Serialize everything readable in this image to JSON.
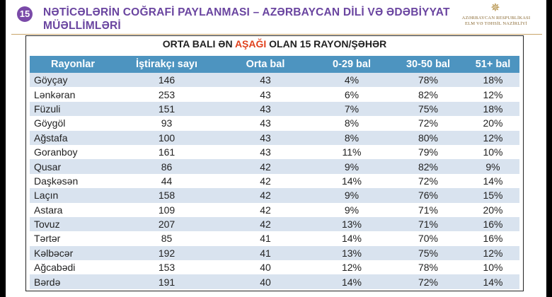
{
  "slide_number": "15",
  "title": "NƏTİCƏLƏRİN COĞRAFİ PAYLANMASI – AZƏRBAYCAN DİLİ VƏ ƏDƏBİYYAT MÜƏLLİMLƏRİ",
  "ministry": {
    "line1": "AZƏRBAYCAN RESPUBLİKASI",
    "line2": "ELM VƏ TƏHSİL NAZİRLİYİ"
  },
  "subtitle": {
    "before": "ORTA BALI ƏN ",
    "highlight": "AŞAĞI",
    "after": " OLAN 15 RAYON/ŞƏHƏR"
  },
  "colors": {
    "header_bg": "#4d94c0",
    "row_alt_bg": "#d9e3ef",
    "title_color": "#6a45a0",
    "highlight_color": "#e0421e"
  },
  "table": {
    "headers": [
      "Rayonlar",
      "İştirakçı sayı",
      "Orta bal",
      "0-29 bal",
      "30-50 bal",
      "51+ bal"
    ],
    "rows": [
      [
        "Göyçay",
        "146",
        "43",
        "4%",
        "78%",
        "18%"
      ],
      [
        "Lənkəran",
        "253",
        "43",
        "6%",
        "82%",
        "12%"
      ],
      [
        "Füzuli",
        "151",
        "43",
        "7%",
        "75%",
        "18%"
      ],
      [
        "Göygöl",
        "93",
        "43",
        "8%",
        "72%",
        "20%"
      ],
      [
        "Ağstafa",
        "100",
        "43",
        "8%",
        "80%",
        "12%"
      ],
      [
        "Goranboy",
        "161",
        "43",
        "11%",
        "79%",
        "10%"
      ],
      [
        "Qusar",
        "86",
        "42",
        "9%",
        "82%",
        "9%"
      ],
      [
        "Daşkəsən",
        "44",
        "42",
        "14%",
        "72%",
        "14%"
      ],
      [
        "Laçın",
        "158",
        "42",
        "9%",
        "76%",
        "15%"
      ],
      [
        "Astara",
        "109",
        "42",
        "9%",
        "71%",
        "20%"
      ],
      [
        "Tovuz",
        "207",
        "42",
        "13%",
        "71%",
        "16%"
      ],
      [
        "Tərtər",
        "85",
        "41",
        "14%",
        "70%",
        "16%"
      ],
      [
        "Kəlbəcər",
        "192",
        "41",
        "13%",
        "75%",
        "12%"
      ],
      [
        "Ağcabədi",
        "153",
        "40",
        "12%",
        "78%",
        "10%"
      ],
      [
        "Bərdə",
        "191",
        "40",
        "14%",
        "72%",
        "14%"
      ]
    ]
  }
}
